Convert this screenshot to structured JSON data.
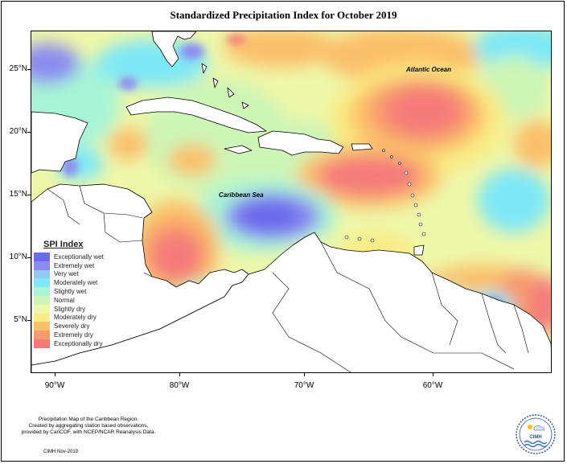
{
  "title": "Standardized Precipitation Index for October 2019",
  "latitude_labels": [
    "25°N",
    "20°N",
    "15°N",
    "10°N",
    "5°N"
  ],
  "longitude_labels": [
    "90°W",
    "80°W",
    "70°W",
    "60°W"
  ],
  "ocean_labels": {
    "atlantic": "Atlantic Ocean",
    "caribbean": "Caribbean Sea"
  },
  "legend": {
    "title": "SPI Index",
    "items": [
      {
        "label": "Exceptionally wet",
        "color": "#6b6bea"
      },
      {
        "label": "Extremely wet",
        "color": "#8c8cf0"
      },
      {
        "label": "Very wet",
        "color": "#93c8f4"
      },
      {
        "label": "Moderately wet",
        "color": "#7ee8f6"
      },
      {
        "label": "Slightly wet",
        "color": "#a7f5d6"
      },
      {
        "label": "Normal",
        "color": "#ccf5b6"
      },
      {
        "label": "Slightly dry",
        "color": "#eef7a8"
      },
      {
        "label": "Moderately dry",
        "color": "#f9ec84"
      },
      {
        "label": "Severely dry",
        "color": "#fbc06a"
      },
      {
        "label": "Extremely dry",
        "color": "#f89a6d"
      },
      {
        "label": "Exceptionally dry",
        "color": "#f47a7a"
      }
    ]
  },
  "footer": {
    "line1": "Precipitation Map of the Caribbean Region.",
    "line2": "Created by aggregating station based observations,",
    "line3": "provided by CariCOF, with NCEP/NCAR Reanalysis Data."
  },
  "credit": "CIMH Nov-2019",
  "logo_text": "CIMH"
}
